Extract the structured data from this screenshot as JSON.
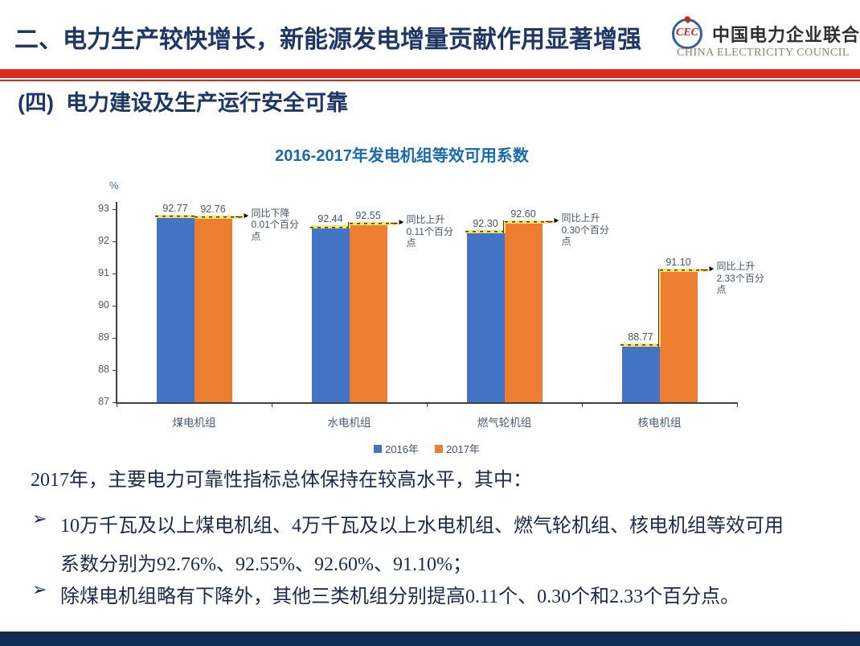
{
  "header": {
    "title": "二、电力生产较快增长，新能源发电增量贡献作用显著增强",
    "logo": {
      "emblem_text": "CEC",
      "name_cn": "中国电力企业联合会",
      "name_en": "CHINA ELECTRICITY COUNCIL"
    }
  },
  "section": {
    "title": "(四)  电力建设及生产运行安全可靠"
  },
  "chart_data": {
    "type": "bar",
    "title": "2016-2017年发电机组等效可用系数",
    "ylabel": "%",
    "categories": [
      "煤电机组",
      "水电机组",
      "燃气轮机组",
      "核电机组"
    ],
    "series": [
      {
        "name": "2016年",
        "color": "#4472c4",
        "values": [
          92.77,
          92.44,
          92.3,
          88.77
        ]
      },
      {
        "name": "2017年",
        "color": "#ed7d31",
        "values": [
          92.76,
          92.55,
          92.6,
          91.1
        ]
      }
    ],
    "annotations": [
      "同比下降0.01个百分点",
      "同比上升0.11个百分点",
      "同比上升0.30个百分点",
      "同比上升2.33个百分点"
    ],
    "ylim": [
      87,
      93
    ],
    "yticks": [
      87,
      88,
      89,
      90,
      91,
      92,
      93
    ],
    "grid": false,
    "legend_position": "bottom"
  },
  "body": {
    "intro": "2017年，主要电力可靠性指标总体保持在较高水平，其中：",
    "bullet_marker": "➢",
    "bullets": [
      "10万千瓦及以上煤电机组、4万千瓦及以上水电机组、燃气轮机组、核电机组等效可用系数分别为92.76%、92.55%、92.60%、91.10%；",
      "除煤电机组略有下降外，其他三类机组分别提高0.11个、0.30个和2.33个百分点。"
    ]
  },
  "colors": {
    "accent_red": "#dc2a23",
    "title_navy": "#1e3766",
    "chart_title_blue": "#196aae",
    "bar_2016_blue": "#4472c4",
    "bar_2017_orange": "#ed7d31",
    "connector_gold": "#f9e463",
    "footer_navy_dark": "#15294a",
    "footer_navy": "#103059"
  }
}
